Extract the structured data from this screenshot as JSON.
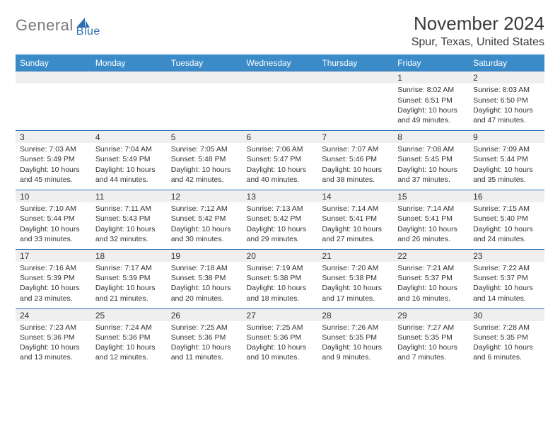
{
  "logo": {
    "text1": "General",
    "text2": "Blue",
    "accent_color": "#2e6fb4",
    "gray_color": "#7a7a7a"
  },
  "title": "November 2024",
  "location": "Spur, Texas, United States",
  "header_bg": "#3b8bc9",
  "row_border": "#2e6fb4",
  "daynum_bg": "#efefef",
  "day_headers": [
    "Sunday",
    "Monday",
    "Tuesday",
    "Wednesday",
    "Thursday",
    "Friday",
    "Saturday"
  ],
  "weeks": [
    [
      null,
      null,
      null,
      null,
      null,
      {
        "n": "1",
        "sunrise": "8:02 AM",
        "sunset": "6:51 PM",
        "daylight": "10 hours and 49 minutes."
      },
      {
        "n": "2",
        "sunrise": "8:03 AM",
        "sunset": "6:50 PM",
        "daylight": "10 hours and 47 minutes."
      }
    ],
    [
      {
        "n": "3",
        "sunrise": "7:03 AM",
        "sunset": "5:49 PM",
        "daylight": "10 hours and 45 minutes."
      },
      {
        "n": "4",
        "sunrise": "7:04 AM",
        "sunset": "5:49 PM",
        "daylight": "10 hours and 44 minutes."
      },
      {
        "n": "5",
        "sunrise": "7:05 AM",
        "sunset": "5:48 PM",
        "daylight": "10 hours and 42 minutes."
      },
      {
        "n": "6",
        "sunrise": "7:06 AM",
        "sunset": "5:47 PM",
        "daylight": "10 hours and 40 minutes."
      },
      {
        "n": "7",
        "sunrise": "7:07 AM",
        "sunset": "5:46 PM",
        "daylight": "10 hours and 38 minutes."
      },
      {
        "n": "8",
        "sunrise": "7:08 AM",
        "sunset": "5:45 PM",
        "daylight": "10 hours and 37 minutes."
      },
      {
        "n": "9",
        "sunrise": "7:09 AM",
        "sunset": "5:44 PM",
        "daylight": "10 hours and 35 minutes."
      }
    ],
    [
      {
        "n": "10",
        "sunrise": "7:10 AM",
        "sunset": "5:44 PM",
        "daylight": "10 hours and 33 minutes."
      },
      {
        "n": "11",
        "sunrise": "7:11 AM",
        "sunset": "5:43 PM",
        "daylight": "10 hours and 32 minutes."
      },
      {
        "n": "12",
        "sunrise": "7:12 AM",
        "sunset": "5:42 PM",
        "daylight": "10 hours and 30 minutes."
      },
      {
        "n": "13",
        "sunrise": "7:13 AM",
        "sunset": "5:42 PM",
        "daylight": "10 hours and 29 minutes."
      },
      {
        "n": "14",
        "sunrise": "7:14 AM",
        "sunset": "5:41 PM",
        "daylight": "10 hours and 27 minutes."
      },
      {
        "n": "15",
        "sunrise": "7:14 AM",
        "sunset": "5:41 PM",
        "daylight": "10 hours and 26 minutes."
      },
      {
        "n": "16",
        "sunrise": "7:15 AM",
        "sunset": "5:40 PM",
        "daylight": "10 hours and 24 minutes."
      }
    ],
    [
      {
        "n": "17",
        "sunrise": "7:16 AM",
        "sunset": "5:39 PM",
        "daylight": "10 hours and 23 minutes."
      },
      {
        "n": "18",
        "sunrise": "7:17 AM",
        "sunset": "5:39 PM",
        "daylight": "10 hours and 21 minutes."
      },
      {
        "n": "19",
        "sunrise": "7:18 AM",
        "sunset": "5:38 PM",
        "daylight": "10 hours and 20 minutes."
      },
      {
        "n": "20",
        "sunrise": "7:19 AM",
        "sunset": "5:38 PM",
        "daylight": "10 hours and 18 minutes."
      },
      {
        "n": "21",
        "sunrise": "7:20 AM",
        "sunset": "5:38 PM",
        "daylight": "10 hours and 17 minutes."
      },
      {
        "n": "22",
        "sunrise": "7:21 AM",
        "sunset": "5:37 PM",
        "daylight": "10 hours and 16 minutes."
      },
      {
        "n": "23",
        "sunrise": "7:22 AM",
        "sunset": "5:37 PM",
        "daylight": "10 hours and 14 minutes."
      }
    ],
    [
      {
        "n": "24",
        "sunrise": "7:23 AM",
        "sunset": "5:36 PM",
        "daylight": "10 hours and 13 minutes."
      },
      {
        "n": "25",
        "sunrise": "7:24 AM",
        "sunset": "5:36 PM",
        "daylight": "10 hours and 12 minutes."
      },
      {
        "n": "26",
        "sunrise": "7:25 AM",
        "sunset": "5:36 PM",
        "daylight": "10 hours and 11 minutes."
      },
      {
        "n": "27",
        "sunrise": "7:25 AM",
        "sunset": "5:36 PM",
        "daylight": "10 hours and 10 minutes."
      },
      {
        "n": "28",
        "sunrise": "7:26 AM",
        "sunset": "5:35 PM",
        "daylight": "10 hours and 9 minutes."
      },
      {
        "n": "29",
        "sunrise": "7:27 AM",
        "sunset": "5:35 PM",
        "daylight": "10 hours and 7 minutes."
      },
      {
        "n": "30",
        "sunrise": "7:28 AM",
        "sunset": "5:35 PM",
        "daylight": "10 hours and 6 minutes."
      }
    ]
  ],
  "labels": {
    "sunrise": "Sunrise: ",
    "sunset": "Sunset: ",
    "daylight": "Daylight: "
  }
}
